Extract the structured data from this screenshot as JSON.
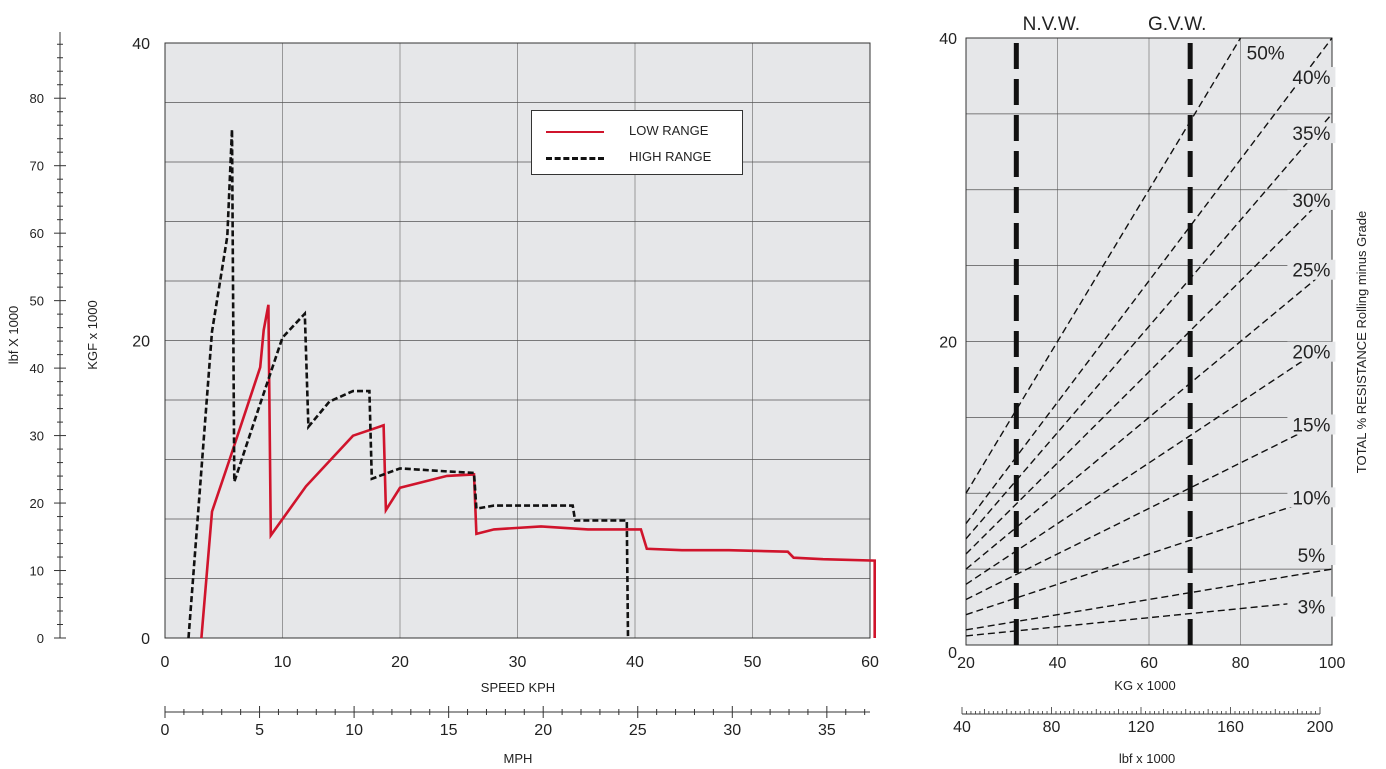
{
  "chart_data": [
    {
      "type": "line",
      "x_axis": {
        "label": "SPEED KPH",
        "range": [
          0,
          60
        ],
        "ticks": [
          "0",
          "10",
          "20",
          "30",
          "40",
          "50",
          "60"
        ]
      },
      "x_axis_secondary": {
        "label": "MPH",
        "range": [
          0,
          35
        ],
        "ticks": [
          "0",
          "5",
          "10",
          "15",
          "20",
          "25",
          "30",
          "35"
        ]
      },
      "y_axis": {
        "label": "KGF x 1000",
        "range": [
          0,
          40
        ],
        "ticks": [
          "0",
          "20",
          "40"
        ]
      },
      "y_axis_secondary": {
        "label": "lbf X 1000",
        "range": [
          0,
          88
        ],
        "ticks": [
          "0",
          "10",
          "20",
          "30",
          "40",
          "50",
          "60",
          "70",
          "80"
        ]
      },
      "grid": true,
      "legend_position": "top-right",
      "series": [
        {
          "name": "LOW RANGE",
          "color": "#d0142c",
          "style": "solid",
          "x": [
            3.1,
            4.0,
            5.5,
            8.1,
            8.4,
            8.8,
            8.8,
            9.0,
            12.0,
            16.0,
            18.6,
            18.6,
            18.8,
            20.0,
            24.0,
            26.3,
            26.3,
            26.5,
            28.0,
            32.0,
            36.0,
            40.5,
            40.5,
            41.0,
            44.0,
            48.0,
            53.0,
            53.0,
            53.5,
            56.0,
            60.4,
            60.4
          ],
          "y": [
            0,
            8.5,
            12.0,
            18.2,
            20.7,
            22.4,
            22.4,
            6.9,
            10.2,
            13.6,
            14.3,
            14.3,
            8.6,
            10.1,
            10.9,
            11.0,
            11.0,
            7.0,
            7.3,
            7.5,
            7.3,
            7.3,
            7.3,
            6.0,
            5.9,
            5.9,
            5.8,
            5.8,
            5.4,
            5.3,
            5.2,
            0
          ]
        },
        {
          "name": "HIGH RANGE",
          "color": "#111111",
          "style": "dashed",
          "x": [
            2.0,
            4.0,
            5.3,
            5.7,
            5.7,
            5.9,
            8.0,
            10.0,
            11.9,
            11.9,
            12.2,
            14.0,
            16.0,
            17.4,
            17.4,
            17.6,
            20.0,
            24.0,
            26.3,
            26.3,
            26.5,
            28.0,
            34.7,
            34.7,
            34.9,
            39.3,
            39.3,
            39.4
          ],
          "y": [
            0,
            20.6,
            27.0,
            34.2,
            34.2,
            10.5,
            15.5,
            20.2,
            21.8,
            21.8,
            14.2,
            15.9,
            16.6,
            16.6,
            16.6,
            10.7,
            11.4,
            11.2,
            11.1,
            11.1,
            8.7,
            8.9,
            8.9,
            8.9,
            7.9,
            7.9,
            7.9,
            0
          ]
        }
      ]
    },
    {
      "type": "line",
      "x_axis": {
        "label": "KG x 1000",
        "range": [
          20,
          100
        ],
        "ticks": [
          "20",
          "40",
          "60",
          "80",
          "100"
        ]
      },
      "x_axis_secondary": {
        "label": "lbf x 1000",
        "range": [
          40,
          200
        ],
        "ticks": [
          "40",
          "80",
          "120",
          "160",
          "200"
        ]
      },
      "y_axis": {
        "label": "",
        "range": [
          0,
          40
        ],
        "ticks": [
          "0",
          "20",
          "40"
        ]
      },
      "y_axis_right_label": "TOTAL % RESISTANCE Rolling minus Grade",
      "grid": true,
      "weight_markers": [
        {
          "label": "N.V.W.",
          "x": 31
        },
        {
          "label": "G.V.W.",
          "x": 69
        }
      ],
      "series": [
        {
          "name": "3%",
          "style": "dashed",
          "x": [
            20,
            100
          ],
          "y": [
            0.6,
            3.0
          ]
        },
        {
          "name": "5%",
          "style": "dashed",
          "x": [
            20,
            100
          ],
          "y": [
            1.0,
            5.0
          ]
        },
        {
          "name": "10%",
          "style": "dashed",
          "x": [
            20,
            100
          ],
          "y": [
            2.0,
            10.0
          ]
        },
        {
          "name": "15%",
          "style": "dashed",
          "x": [
            20,
            100
          ],
          "y": [
            3.0,
            15.0
          ]
        },
        {
          "name": "20%",
          "style": "dashed",
          "x": [
            20,
            100
          ],
          "y": [
            4.0,
            20.0
          ]
        },
        {
          "name": "25%",
          "style": "dashed",
          "x": [
            20,
            100
          ],
          "y": [
            5.0,
            25.0
          ]
        },
        {
          "name": "30%",
          "style": "dashed",
          "x": [
            20,
            100
          ],
          "y": [
            6.0,
            30.0
          ]
        },
        {
          "name": "35%",
          "style": "dashed",
          "x": [
            20,
            100
          ],
          "y": [
            7.0,
            35.0
          ]
        },
        {
          "name": "40%",
          "style": "dashed",
          "x": [
            20,
            100
          ],
          "y": [
            8.0,
            40.0
          ]
        },
        {
          "name": "50%",
          "style": "dashed",
          "x": [
            20,
            80
          ],
          "y": [
            10.0,
            40.0
          ]
        }
      ],
      "percent_labels": [
        {
          "text": "50%",
          "x": 85.5,
          "y": 38.7
        },
        {
          "text": "40%",
          "x": 95.5,
          "y": 37.1
        },
        {
          "text": "35%",
          "x": 95.5,
          "y": 33.4
        },
        {
          "text": "30%",
          "x": 95.5,
          "y": 29.0
        },
        {
          "text": "25%",
          "x": 95.5,
          "y": 24.4
        },
        {
          "text": "20%",
          "x": 95.5,
          "y": 19.0
        },
        {
          "text": "15%",
          "x": 95.5,
          "y": 14.2
        },
        {
          "text": "10%",
          "x": 95.5,
          "y": 9.4
        },
        {
          "text": "5%",
          "x": 95.5,
          "y": 5.6
        },
        {
          "text": "3%",
          "x": 95.5,
          "y": 2.2
        }
      ]
    }
  ]
}
